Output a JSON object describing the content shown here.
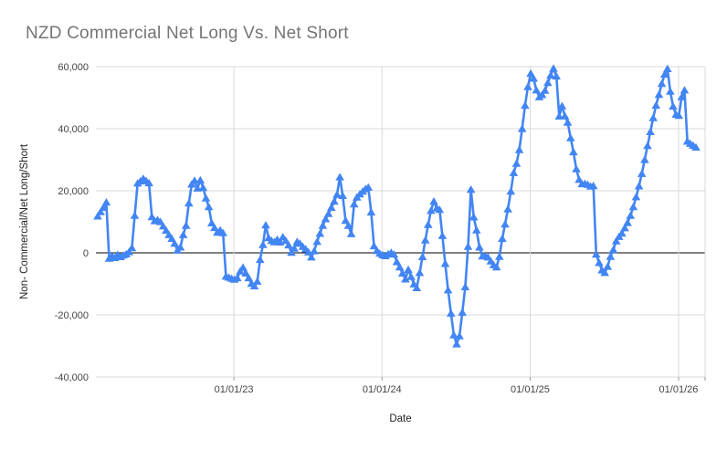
{
  "page": {
    "title": "NZD Commercial Net Long Vs. Net Short"
  },
  "colors": {
    "series_blue": "#4285f4",
    "gridline": "#d9d9d9",
    "zero_line": "#000000",
    "tick_mark": "#999999",
    "title_gray": "#757575",
    "tick_label": "#444444",
    "axis_title": "#1f1f1f",
    "background": "#ffffff"
  },
  "chart_data": {
    "type": "line",
    "title": "NZD Commercial Net Long Vs. Net Short",
    "xlabel": "Date",
    "ylabel": "Non- Commercial/Net Long/Short",
    "ylim": [
      -40000,
      60000
    ],
    "grid": true,
    "legend": "none",
    "y_ticks": [
      -40000,
      -20000,
      0,
      20000,
      40000,
      60000
    ],
    "y_tick_labels": [
      "-40,000",
      "-20,000",
      "0",
      "20,000",
      "40,000",
      "60,000"
    ],
    "x_tick_labels": [
      "01/01/23",
      "01/01/24",
      "01/01/25",
      "01/01/26"
    ],
    "x_tick_week_index": [
      47.8,
      99.8,
      151.8,
      203.9
    ],
    "series": [
      {
        "name": "Non-Commercial Net Long/Short",
        "color": "#4285f4",
        "marker": "triangle-up",
        "start_date": "2022-02-01",
        "frequency": "weekly",
        "values": [
          11800,
          13200,
          14600,
          16300,
          -1800,
          -1000,
          -1600,
          -600,
          -1300,
          -800,
          -400,
          300,
          1600,
          12000,
          22400,
          23100,
          23900,
          23200,
          22500,
          11600,
          10300,
          10600,
          10000,
          8600,
          7200,
          5800,
          4600,
          3000,
          800,
          1800,
          5800,
          8800,
          16000,
          22100,
          23300,
          20800,
          23400,
          21000,
          17600,
          14800,
          9600,
          8100,
          6600,
          7300,
          6400,
          -7600,
          -7900,
          -8300,
          -8600,
          -8100,
          -5900,
          -4700,
          -6600,
          -8100,
          -9900,
          -10700,
          -9200,
          -2200,
          2600,
          8900,
          4800,
          3900,
          3500,
          4300,
          3400,
          5100,
          3900,
          2500,
          100,
          1400,
          3600,
          3000,
          2000,
          1200,
          200,
          -1400,
          600,
          3600,
          6200,
          8800,
          10900,
          12600,
          14600,
          16600,
          18800,
          24400,
          18400,
          10400,
          8800,
          6100,
          15700,
          17900,
          18900,
          19800,
          20600,
          21100,
          13100,
          2200,
          700,
          -200,
          -700,
          -1000,
          -400,
          100,
          -500,
          -2900,
          -4600,
          -6600,
          -8500,
          -5400,
          -7700,
          -10100,
          -11300,
          -6400,
          -1300,
          4100,
          9100,
          13600,
          16600,
          14400,
          13900,
          5500,
          -3500,
          -12000,
          -19500,
          -26500,
          -29400,
          -26800,
          -19200,
          -11000,
          2000,
          20400,
          11500,
          7300,
          1800,
          -1100,
          -900,
          -1400,
          -2700,
          -3900,
          -4600,
          -1200,
          4600,
          9200,
          14100,
          19800,
          25800,
          28800,
          33200,
          40000,
          47500,
          53500,
          57800,
          56200,
          52400,
          50200,
          50900,
          52300,
          54800,
          57200,
          59400,
          56900,
          44000,
          47300,
          44100,
          42000,
          37000,
          32500,
          27000,
          23600,
          22200,
          22300,
          22000,
          21400,
          21600,
          -500,
          -3200,
          -5600,
          -6400,
          -4400,
          -1200,
          1000,
          3800,
          5200,
          6300,
          8000,
          9700,
          12000,
          14800,
          18000,
          21500,
          25500,
          30000,
          34500,
          39000,
          43500,
          47500,
          51000,
          54500,
          57500,
          59300,
          52000,
          47200,
          44600,
          44200,
          50200,
          52400,
          35900,
          35200,
          34600,
          34000
        ]
      }
    ]
  }
}
